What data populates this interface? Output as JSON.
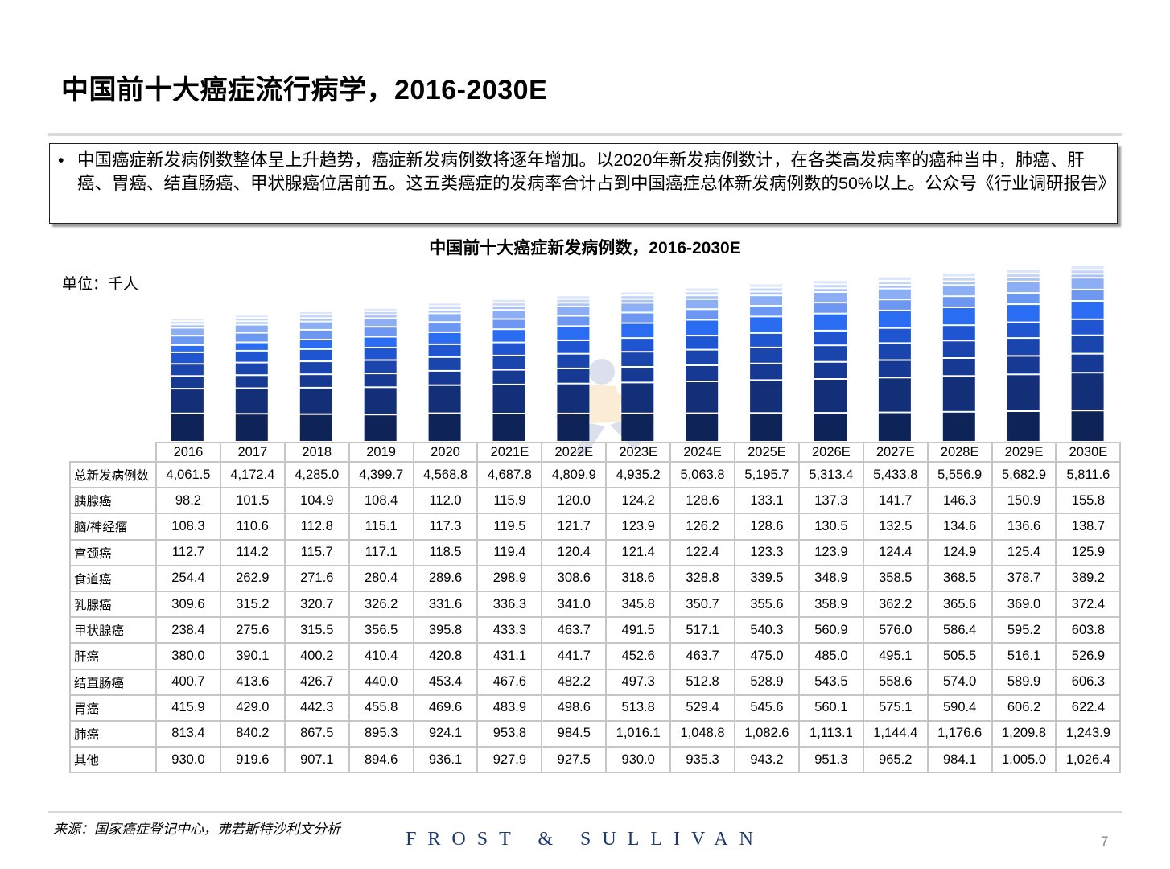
{
  "header": {
    "title": "中国前十大癌症流行病学，2016-2030E"
  },
  "summary": {
    "bullet": "•",
    "text": "中国癌症新发病例数整体呈上升趋势，癌症新发病例数将逐年增加。以2020年新发病例数计，在各类高发病率的癌种当中，肺癌、肝癌、胃癌、结直肠癌、甲状腺癌位居前五。这五类癌症的发病率合计占到中国癌症总体新发病例数的50%以上。公众号《行业调研报告》"
  },
  "chart_data": {
    "type": "bar",
    "stacked": true,
    "title": "中国前十大癌症新发病例数，2016-2030E",
    "unit": "单位：千人",
    "categories": [
      "2016",
      "2017",
      "2018",
      "2019",
      "2020",
      "2021E",
      "2022E",
      "2023E",
      "2024E",
      "2025E",
      "2026E",
      "2027E",
      "2028E",
      "2029E",
      "2030E"
    ],
    "total_label": "总新发病例数",
    "totals": [
      "4,061.5",
      "4,172.4",
      "4,285.0",
      "4,399.7",
      "4,568.8",
      "4,687.8",
      "4,809.9",
      "4,935.2",
      "5,063.8",
      "5,195.7",
      "5,313.4",
      "5,433.8",
      "5,556.9",
      "5,682.9",
      "5,811.6"
    ],
    "series": [
      {
        "name": "胰腺癌",
        "color": "#dce6fb",
        "values": [
          "98.2",
          "101.5",
          "104.9",
          "108.4",
          "112.0",
          "115.9",
          "120.0",
          "124.2",
          "128.6",
          "133.1",
          "137.3",
          "141.7",
          "146.3",
          "150.9",
          "155.8"
        ]
      },
      {
        "name": "脑/神经瘤",
        "color": "#c5d6f9",
        "values": [
          "108.3",
          "110.6",
          "112.8",
          "115.1",
          "117.3",
          "119.5",
          "121.7",
          "123.9",
          "126.2",
          "128.6",
          "130.5",
          "132.5",
          "134.6",
          "136.6",
          "138.7"
        ]
      },
      {
        "name": "宫颈癌",
        "color": "#aac3f6",
        "values": [
          "112.7",
          "114.2",
          "115.7",
          "117.1",
          "118.5",
          "119.4",
          "120.4",
          "121.4",
          "122.4",
          "123.3",
          "123.9",
          "124.4",
          "124.9",
          "125.4",
          "125.9"
        ]
      },
      {
        "name": "食道癌",
        "color": "#8baef4",
        "values": [
          "254.4",
          "262.9",
          "271.6",
          "280.4",
          "289.6",
          "298.9",
          "308.6",
          "318.6",
          "328.8",
          "339.5",
          "348.9",
          "358.5",
          "368.5",
          "378.7",
          "389.2"
        ]
      },
      {
        "name": "乳腺癌",
        "color": "#6c97f2",
        "values": [
          "309.6",
          "315.2",
          "320.7",
          "326.2",
          "331.6",
          "336.3",
          "341.0",
          "345.8",
          "350.7",
          "355.6",
          "358.9",
          "362.2",
          "365.6",
          "369.0",
          "372.4"
        ]
      },
      {
        "name": "甲状腺癌",
        "color": "#2a6cf2",
        "values": [
          "238.4",
          "275.6",
          "315.5",
          "356.5",
          "395.8",
          "433.3",
          "463.7",
          "491.5",
          "517.1",
          "540.3",
          "560.9",
          "576.0",
          "586.4",
          "595.2",
          "603.8"
        ]
      },
      {
        "name": "肝癌",
        "color": "#1f55d0",
        "values": [
          "380.0",
          "390.1",
          "400.2",
          "410.4",
          "420.8",
          "431.1",
          "441.7",
          "452.6",
          "463.7",
          "475.0",
          "485.0",
          "495.1",
          "505.5",
          "516.1",
          "526.9"
        ]
      },
      {
        "name": "结直肠癌",
        "color": "#1a45ad",
        "values": [
          "400.7",
          "413.6",
          "426.7",
          "440.0",
          "453.4",
          "467.6",
          "482.2",
          "497.3",
          "512.8",
          "528.9",
          "543.5",
          "558.6",
          "574.0",
          "589.9",
          "606.3"
        ]
      },
      {
        "name": "胃癌",
        "color": "#163a93",
        "values": [
          "415.9",
          "429.0",
          "442.3",
          "455.8",
          "469.6",
          "483.9",
          "498.6",
          "513.8",
          "529.4",
          "545.6",
          "560.1",
          "575.1",
          "590.4",
          "606.2",
          "622.4"
        ]
      },
      {
        "name": "肺癌",
        "color": "#132f78",
        "values": [
          "813.4",
          "840.2",
          "867.5",
          "895.3",
          "924.1",
          "953.8",
          "984.5",
          "1,016.1",
          "1,048.8",
          "1,082.6",
          "1,113.1",
          "1,144.4",
          "1,176.6",
          "1,209.8",
          "1,243.9"
        ]
      },
      {
        "name": "其他",
        "color": "#0e2458",
        "values": [
          "930.0",
          "919.6",
          "907.1",
          "894.6",
          "936.1",
          "927.9",
          "927.5",
          "930.0",
          "935.3",
          "943.2",
          "951.3",
          "965.2",
          "984.1",
          "1,005.0",
          "1,026.4"
        ]
      }
    ]
  },
  "footer": {
    "source": "来源：国家癌症登记中心，弗若斯特沙利文分析",
    "brand": "FROST & SULLIVAN",
    "page_number": "7"
  }
}
